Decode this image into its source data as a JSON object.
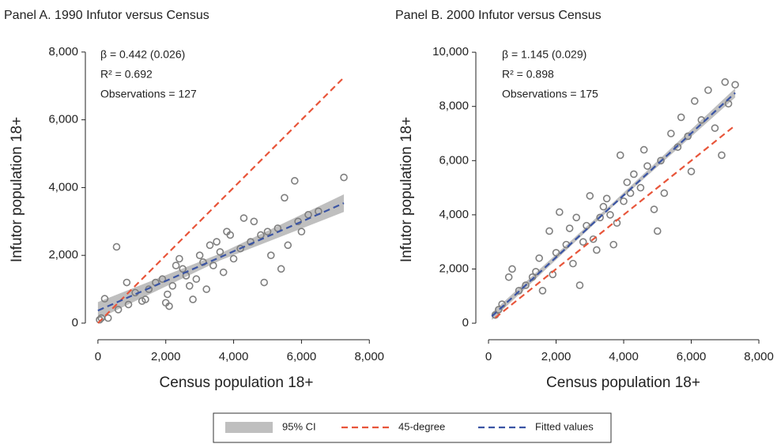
{
  "chart_data": [
    {
      "type": "scatter",
      "title": "Panel A. 1990 Infutor versus Census",
      "x_label": "Census population 18+",
      "y_label": "Infutor population 18+",
      "annotations": [
        "β = 0.442 (0.026)",
        "R² = 0.692",
        "Observations = 127"
      ],
      "xlim": [
        -370,
        8530
      ],
      "ylim": [
        -490,
        8370
      ],
      "xticks": [
        0,
        {
          "value": 2000,
          "label": "2,000"
        },
        {
          "value": 4000,
          "label": "4,000"
        },
        {
          "value": 6000,
          "label": "6,000"
        },
        {
          "value": 8000,
          "label": "8,000"
        }
      ],
      "yticks": [
        0,
        {
          "value": 2000,
          "label": "2,000"
        },
        {
          "value": 4000,
          "label": "4,000"
        },
        {
          "value": 6000,
          "label": "6,000"
        },
        {
          "value": 8000,
          "label": "8,000"
        }
      ],
      "points": {
        "color": "#7f7f7f",
        "x": [
          50,
          100,
          200,
          300,
          550,
          600,
          850,
          900,
          1100,
          1300,
          1400,
          1500,
          1700,
          1900,
          2000,
          2050,
          2100,
          2200,
          2300,
          2400,
          2500,
          2600,
          2700,
          2800,
          2900,
          3000,
          3100,
          3200,
          3300,
          3400,
          3500,
          3600,
          3700,
          3800,
          3900,
          4000,
          4200,
          4300,
          4500,
          4600,
          4800,
          4900,
          5000,
          5100,
          5300,
          5400,
          5500,
          5600,
          5800,
          5900,
          6000,
          6200,
          6500,
          7250
        ],
        "y": [
          100,
          150,
          720,
          150,
          2250,
          400,
          1200,
          550,
          900,
          650,
          700,
          1000,
          1200,
          1300,
          600,
          850,
          500,
          1100,
          1700,
          1900,
          1600,
          1400,
          1100,
          700,
          1300,
          2000,
          1800,
          1000,
          2300,
          1700,
          2400,
          2100,
          1500,
          2700,
          2600,
          1900,
          2200,
          3100,
          2400,
          3000,
          2600,
          1200,
          2700,
          2000,
          2800,
          1600,
          3700,
          2300,
          4200,
          3000,
          2700,
          3200,
          3300,
          4300
        ]
      },
      "ci": {
        "color": "#bfbfbf",
        "x": [
          0,
          3600,
          7250
        ],
        "lower": [
          120,
          1850,
          3280
        ],
        "upper": [
          620,
          2050,
          3800
        ]
      },
      "diagonal": {
        "color": "#e8553a",
        "x": [
          0,
          7250
        ],
        "y": [
          0,
          7250
        ]
      },
      "fit": {
        "color": "#3a54a4",
        "x": [
          0,
          7250
        ],
        "y": [
          370,
          3540
        ]
      }
    },
    {
      "type": "scatter",
      "title": "Panel B. 2000 Infutor versus Census",
      "x_label": "Census population 18+",
      "y_label": "Infutor population 18+",
      "annotations": [
        "β = 1.145 (0.029)",
        "R² = 0.898",
        "Observations = 175"
      ],
      "xlim": [
        -375,
        8350
      ],
      "ylim": [
        -610,
        10470
      ],
      "xticks": [
        0,
        {
          "value": 2000,
          "label": "2,000"
        },
        {
          "value": 4000,
          "label": "4,000"
        },
        {
          "value": 6000,
          "label": "6,000"
        },
        {
          "value": 8000,
          "label": "8,000"
        }
      ],
      "yticks": [
        0,
        {
          "value": 2000,
          "label": "2,000"
        },
        {
          "value": 4000,
          "label": "4,000"
        },
        {
          "value": 6000,
          "label": "6,000"
        },
        {
          "value": 8000,
          "label": "8,000"
        },
        {
          "value": 10000,
          "label": "10,000"
        }
      ],
      "points": {
        "color": "#7f7f7f",
        "x": [
          200,
          300,
          400,
          600,
          700,
          900,
          1100,
          1300,
          1400,
          1500,
          1600,
          1800,
          1900,
          2000,
          2100,
          2300,
          2400,
          2500,
          2600,
          2700,
          2800,
          2900,
          3000,
          3100,
          3200,
          3300,
          3400,
          3500,
          3600,
          3700,
          3800,
          3900,
          4000,
          4100,
          4200,
          4300,
          4500,
          4600,
          4700,
          4900,
          5000,
          5100,
          5200,
          5400,
          5600,
          5700,
          5900,
          6000,
          6100,
          6300,
          6500,
          6700,
          6900,
          7000,
          7100,
          7300
        ],
        "y": [
          300,
          500,
          700,
          1700,
          2000,
          1200,
          1400,
          1700,
          1900,
          2400,
          1200,
          3400,
          1800,
          2600,
          4100,
          2900,
          3500,
          2200,
          3900,
          1400,
          3000,
          3600,
          4700,
          3100,
          2700,
          3900,
          4300,
          4600,
          4000,
          2900,
          3700,
          6200,
          4500,
          5200,
          4800,
          5500,
          5000,
          6400,
          5800,
          4200,
          3400,
          6000,
          4800,
          7000,
          6500,
          7600,
          6900,
          5600,
          8200,
          7500,
          8600,
          7200,
          6200,
          8900,
          8100,
          8800
        ]
      },
      "ci": {
        "color": "#bfbfbf",
        "x": [
          100,
          3700,
          7300
        ],
        "lower": [
          120,
          4330,
          8330
        ],
        "upper": [
          390,
          4470,
          8670
        ]
      },
      "diagonal": {
        "color": "#e8553a",
        "x": [
          200,
          7300
        ],
        "y": [
          200,
          7300
        ]
      },
      "fit": {
        "color": "#3a54a4",
        "x": [
          100,
          7300
        ],
        "y": [
          255,
          8500
        ]
      }
    }
  ],
  "legend": {
    "items": [
      {
        "name": "95% CI",
        "color": "#bfbfbf"
      },
      {
        "name": "45-degree",
        "color": "#e8553a"
      },
      {
        "name": "Fitted values",
        "color": "#3a54a4"
      }
    ]
  }
}
